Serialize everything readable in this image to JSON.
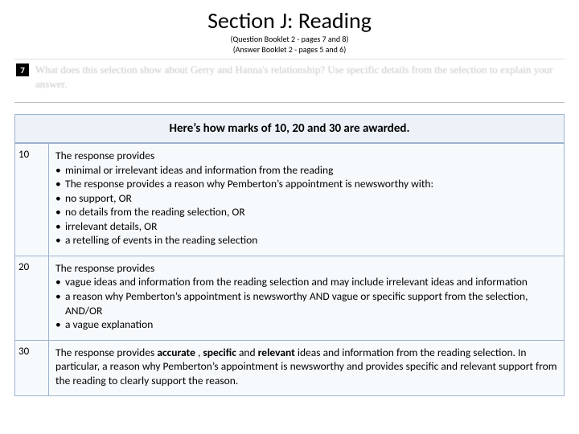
{
  "header": {
    "title": "Section J:  Reading",
    "sub1": "(Question Booklet 2 - pages 7 and 8)",
    "sub2": "(Answer Booklet 2 - pages 5 and 6)"
  },
  "question": {
    "number": "7",
    "text": "What does this selection show about Gerry and Hanna's relationship? Use specific details from the selection to explain your answer."
  },
  "banner": "Here’s how marks of 10, 20 and 30 are awarded.",
  "rows": [
    {
      "score": "10",
      "lead": "The response provides",
      "b1": "minimal or irrelevant ideas and information from the reading",
      "b2": "The response provides a reason why Pemberton’s appointment is newsworthy with:",
      "b3": "no support,  OR",
      "b4": "no details from the reading selection, OR",
      "b5": "irrelevant details, OR",
      "b6": "a retelling of events in the reading selection"
    },
    {
      "score": "20",
      "lead": "The response provides",
      "b1": "vague ideas and information from the reading selection and may include irrelevant ideas and information",
      "b2": "a reason why Pemberton’s appointment is newsworthy AND vague or specific support from the selection, AND/OR",
      "b3": "a vague explanation"
    },
    {
      "score": "30",
      "p_pre1": "The response provides ",
      "p_b1": "accurate ",
      "p_mid1": ", ",
      "p_b2": "specific ",
      "p_mid2": " and ",
      "p_b3": "relevant ",
      "p_post": "ideas and information from the reading selection. In particular, a reason why Pemberton’s appointment is newsworthy and provides specific and relevant support from the reading to clearly support the reason."
    }
  ],
  "colors": {
    "cell_bg": "#f7fafd",
    "cell_border": "#9cb3cc",
    "banner_bg": "#edf2f9",
    "blur_text": "#c8c8c8"
  }
}
